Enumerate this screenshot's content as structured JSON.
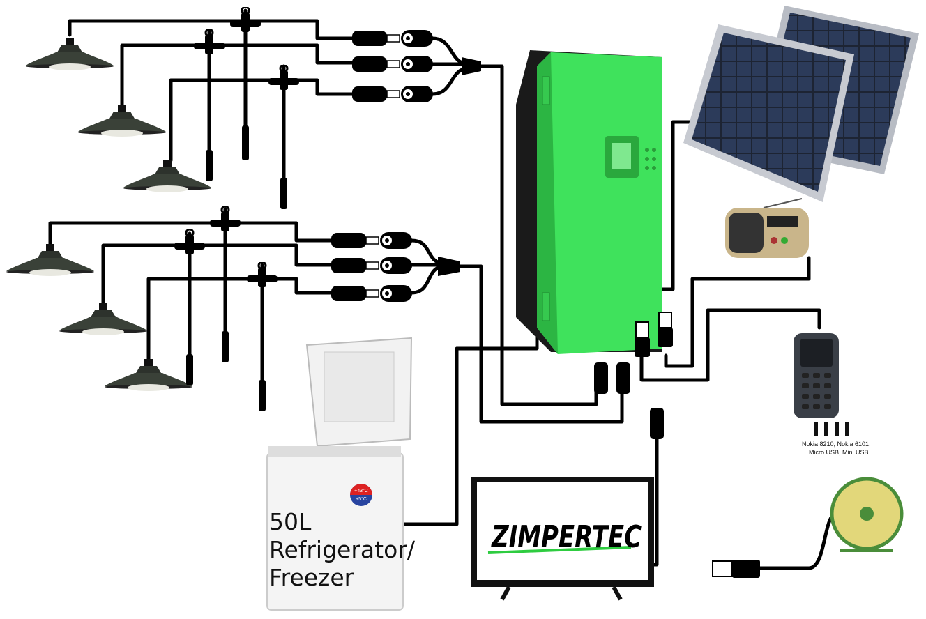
{
  "labels": {
    "fridge": [
      "50L",
      "Refrigerator/",
      "Freezer"
    ],
    "fridge_badge": [
      "+43°C",
      "+5°C"
    ],
    "tv_logo": "ZIMPERTEC",
    "phone_adapters": [
      "Nokia 8210, Nokia 6101,",
      "Micro USB, Mini USB"
    ]
  }
}
